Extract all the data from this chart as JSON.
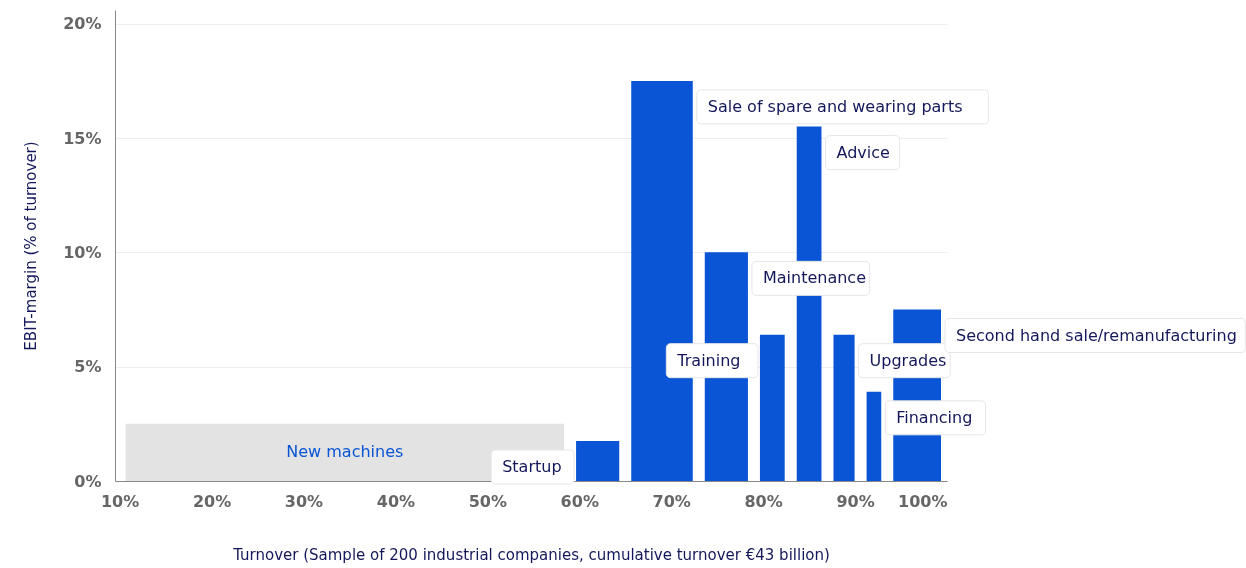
{
  "chart_data": {
    "type": "histogram",
    "xlabel": "Turnover (Sample of 200 industrial companies, cumulative turnover €43 billion)",
    "ylabel": "EBIT-margin (% of turnover)",
    "bins": [
      10,
      59,
      65,
      73,
      79,
      83,
      87,
      90.6,
      93.5,
      100
    ],
    "values": [
      2.5,
      1.75,
      17.5,
      10,
      6.4,
      15.5,
      6.4,
      3.9,
      7.5
    ],
    "colors": [
      "#e3e3e3",
      "#0a55d6",
      "#0a55d6",
      "#0a55d6",
      "#0a55d6",
      "#0a55d6",
      "#0a55d6",
      "#0a55d6",
      "#0a55d6"
    ],
    "xlim": [
      9.5,
      100
    ],
    "xticks": [
      {
        "value": 10,
        "label": "10%"
      },
      {
        "value": 20,
        "label": "20%"
      },
      {
        "value": 30,
        "label": "30%"
      },
      {
        "value": 40,
        "label": "40%"
      },
      {
        "value": 50,
        "label": "50%"
      },
      {
        "value": 60,
        "label": "60%"
      },
      {
        "value": 70,
        "label": "70%"
      },
      {
        "value": 80,
        "label": "80%"
      },
      {
        "value": 90,
        "label": "90%"
      },
      {
        "value": 100,
        "label": "100%"
      }
    ],
    "ylim": [
      0,
      20.6
    ],
    "yticks": [
      {
        "value": 0,
        "label": "0%"
      },
      {
        "value": 5,
        "label": "5%"
      },
      {
        "value": 10,
        "label": "10%"
      },
      {
        "value": 15,
        "label": "15%"
      },
      {
        "value": 20,
        "label": "20%"
      }
    ],
    "grid": "y",
    "annotations": [
      "New machines",
      "Startup",
      "Sale of spare and wearing parts",
      "Maintenance",
      "Training",
      "Advice",
      "Upgrades",
      "Financing",
      "Second hand sale/remanufacturing"
    ]
  }
}
